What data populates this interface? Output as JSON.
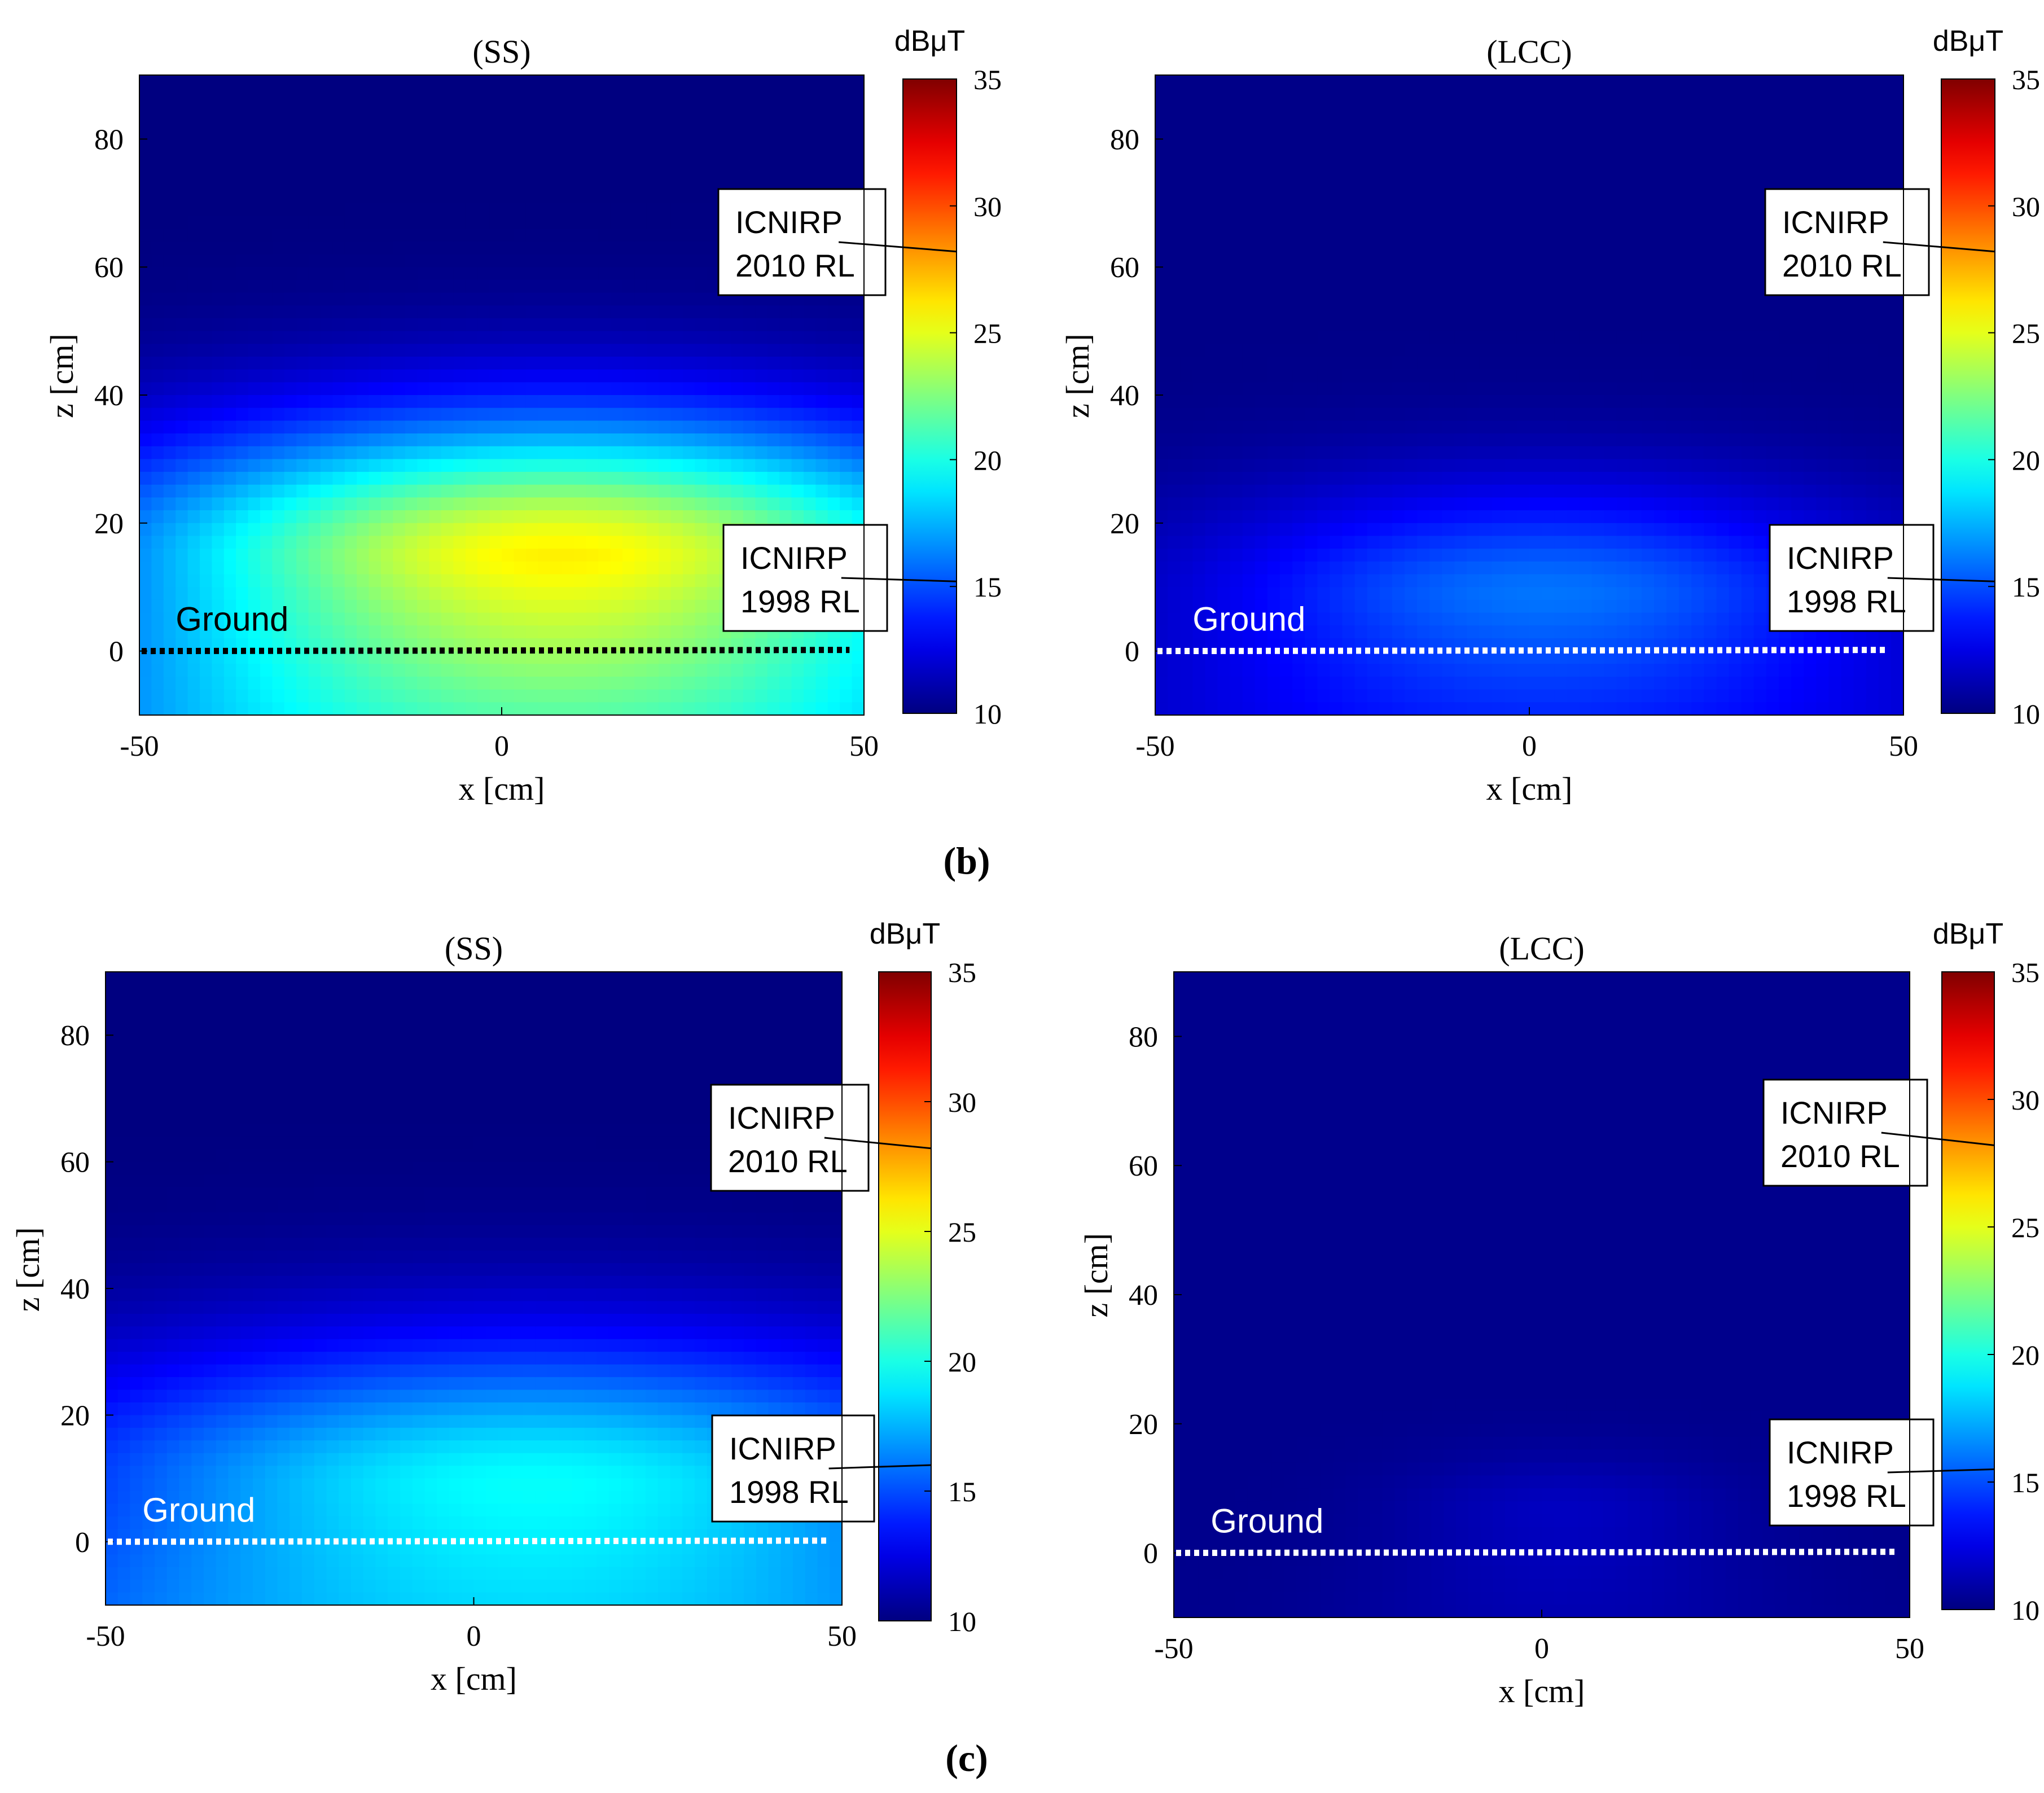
{
  "figure_labels": {
    "b": "(b)",
    "c": "(c)"
  },
  "colors": {
    "jet_stops": [
      "#00008f",
      "#0000ff",
      "#00ffff",
      "#ffff00",
      "#ff0000",
      "#800000"
    ],
    "ground_dark": "#000000",
    "ground_light": "#ffffff"
  },
  "chart_data": [
    {
      "type": "heatmap",
      "panel": "b",
      "title": "(SS)",
      "xlabel": "x [cm]",
      "ylabel": "z [cm]",
      "xlim": [
        -50,
        50
      ],
      "ylim": [
        -10,
        90
      ],
      "xticks": [
        "-50",
        "0",
        "50"
      ],
      "yticks": [
        "0",
        "20",
        "40",
        "60",
        "80"
      ],
      "colorbar": {
        "title": "dBμT",
        "range": [
          10,
          35
        ],
        "ticks": [
          "10",
          "15",
          "20",
          "25",
          "30",
          "35"
        ],
        "colormap": "jet"
      },
      "field": {
        "peak_x": 8,
        "peak_z": 14,
        "peak_value": 26,
        "far_value": 10,
        "ground_value": 21.5,
        "sigma_x": 62,
        "sigma_z": 22
      },
      "ground": {
        "label": "Ground",
        "z": 0,
        "x_range": [
          -50,
          48
        ],
        "color": "black"
      },
      "annotations": [
        {
          "line1": "ICNIRP",
          "line2": "2010 RL",
          "level": 28.2
        },
        {
          "line1": "ICNIRP",
          "line2": "1998 RL",
          "level": 15.2
        }
      ]
    },
    {
      "type": "heatmap",
      "panel": "b",
      "title": "(LCC)",
      "xlabel": "x [cm]",
      "ylabel": "z [cm]",
      "xlim": [
        -50,
        50
      ],
      "ylim": [
        -10,
        90
      ],
      "xticks": [
        "-50",
        "0",
        "50"
      ],
      "yticks": [
        "0",
        "20",
        "40",
        "60",
        "80"
      ],
      "colorbar": {
        "title": "dBμT",
        "range": [
          10,
          35
        ],
        "ticks": [
          "10",
          "15",
          "20",
          "25",
          "30",
          "35"
        ],
        "colormap": "jet"
      },
      "field": {
        "peak_x": 2,
        "peak_z": 8,
        "peak_value": 16,
        "far_value": 10.2,
        "ground_value": 14,
        "sigma_x": 46,
        "sigma_z": 18
      },
      "ground": {
        "label": "Ground",
        "z": 0,
        "x_range": [
          -50,
          48
        ],
        "color": "white"
      },
      "annotations": [
        {
          "line1": "ICNIRP",
          "line2": "2010 RL",
          "level": 28.2
        },
        {
          "line1": "ICNIRP",
          "line2": "1998 RL",
          "level": 15.2
        }
      ]
    },
    {
      "type": "heatmap",
      "panel": "c",
      "title": "(SS)",
      "xlabel": "x [cm]",
      "ylabel": "z [cm]",
      "xlim": [
        -50,
        50
      ],
      "ylim": [
        -10,
        90
      ],
      "xticks": [
        "-50",
        "0",
        "50"
      ],
      "yticks": [
        "0",
        "20",
        "40",
        "60",
        "80"
      ],
      "colorbar": {
        "title": "dBμT",
        "range": [
          10,
          35
        ],
        "ticks": [
          "10",
          "15",
          "20",
          "25",
          "30",
          "35"
        ],
        "colormap": "jet"
      },
      "field": {
        "peak_x": 8,
        "peak_z": 8,
        "peak_value": 19.5,
        "far_value": 10,
        "ground_value": 18.5,
        "sigma_x": 70,
        "sigma_z": 24
      },
      "ground": {
        "label": "Ground",
        "z": 0,
        "x_range": [
          -50,
          48
        ],
        "color": "white"
      },
      "annotations": [
        {
          "line1": "ICNIRP",
          "line2": "2010 RL",
          "level": 28.2
        },
        {
          "line1": "ICNIRP",
          "line2": "1998 RL",
          "level": 16.0
        }
      ]
    },
    {
      "type": "heatmap",
      "panel": "c",
      "title": "(LCC)",
      "xlabel": "x [cm]",
      "ylabel": "z [cm]",
      "xlim": [
        -50,
        50
      ],
      "ylim": [
        -10,
        90
      ],
      "xticks": [
        "-50",
        "0",
        "50"
      ],
      "yticks": [
        "0",
        "20",
        "40",
        "60",
        "80"
      ],
      "colorbar": {
        "title": "dBμT",
        "range": [
          10,
          35
        ],
        "ticks": [
          "10",
          "15",
          "20",
          "25",
          "30",
          "35"
        ],
        "colormap": "jet"
      },
      "field": {
        "peak_x": 3,
        "peak_z": 6,
        "peak_value": 11.6,
        "far_value": 10.3,
        "ground_value": 11.2,
        "sigma_x": 22,
        "sigma_z": 9
      },
      "ground": {
        "label": "Ground",
        "z": 0,
        "x_range": [
          -50,
          48
        ],
        "color": "white"
      },
      "annotations": [
        {
          "line1": "ICNIRP",
          "line2": "2010 RL",
          "level": 28.2
        },
        {
          "line1": "ICNIRP",
          "line2": "1998 RL",
          "level": 15.5
        }
      ]
    }
  ]
}
